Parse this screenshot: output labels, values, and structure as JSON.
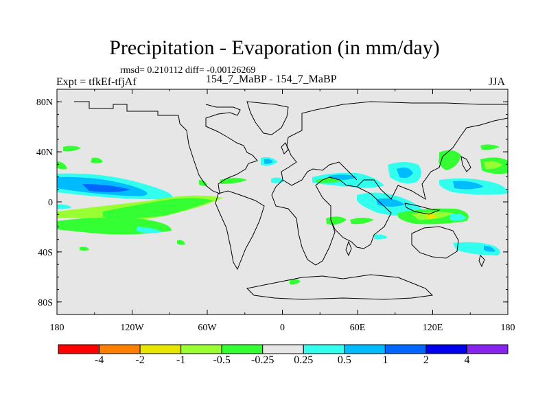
{
  "title": "Precipitation - Evaporation (in mm/day)",
  "stats": "rmsd= 0.210112 diff= -0.00126269",
  "experiment": "Expt = tfkEf-tfjAf",
  "subtitle": "154_7_MaBP - 154_7_MaBP",
  "season": "JJA",
  "map": {
    "background": "#e6e6e6",
    "lon_range": [
      -180,
      180
    ],
    "lat_range": [
      -90,
      90
    ],
    "lat_ticks": [
      {
        "v": 80,
        "label": "80N"
      },
      {
        "v": 40,
        "label": "40N"
      },
      {
        "v": 0,
        "label": "0"
      },
      {
        "v": -40,
        "label": "40S"
      },
      {
        "v": -80,
        "label": "80S"
      }
    ],
    "lon_ticks": [
      {
        "v": -180,
        "label": "180"
      },
      {
        "v": -120,
        "label": "120W"
      },
      {
        "v": -60,
        "label": "60W"
      },
      {
        "v": 0,
        "label": "0"
      },
      {
        "v": 60,
        "label": "60E"
      },
      {
        "v": 120,
        "label": "120E"
      },
      {
        "v": 180,
        "label": "180"
      }
    ]
  },
  "colorbar": {
    "colors": [
      "#ff0000",
      "#ff8000",
      "#e6e600",
      "#99ff33",
      "#33ff33",
      "#e6e6e6",
      "#33ffee",
      "#00bbff",
      "#0066ff",
      "#0000ee",
      "#8822ee"
    ],
    "labels": [
      "-4",
      "-2",
      "-1",
      "-0.5",
      "-0.25",
      "0.25",
      "0.5",
      "1",
      "2",
      "4"
    ]
  }
}
